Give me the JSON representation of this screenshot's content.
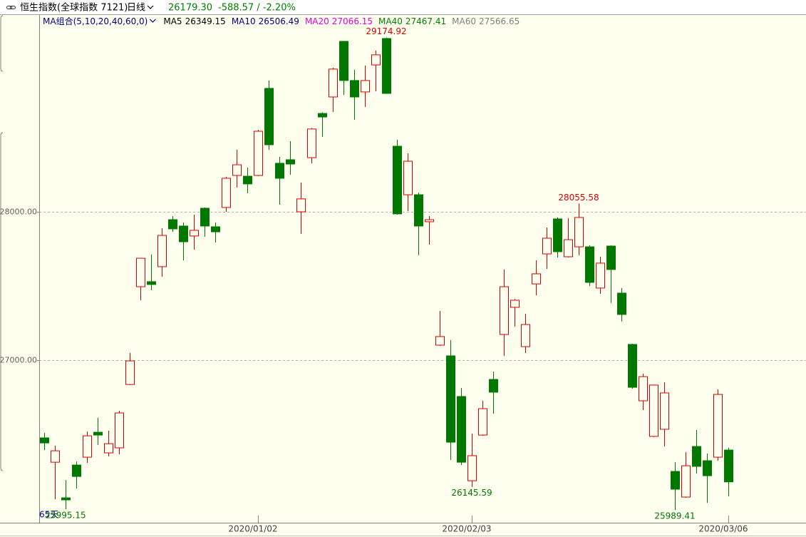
{
  "chart_data": {
    "type": "candlestick",
    "title": "恒生指数(全球指数  7121)",
    "period": "日线",
    "last_price": "26179.30",
    "change": "-588.57 / -2.20%",
    "ma_legend": {
      "label": "MA组合(5,10,20,40,60,0)",
      "items": [
        {
          "name": "MA5",
          "value": "26349.15",
          "color": "#000000"
        },
        {
          "name": "MA10",
          "value": "26506.49",
          "color": "#000080"
        },
        {
          "name": "MA20",
          "value": "27066.15",
          "color": "#e000e0"
        },
        {
          "name": "MA40",
          "value": "27467.41",
          "color": "#008000"
        },
        {
          "name": "MA60",
          "value": "27566.65",
          "color": "#808080"
        }
      ]
    },
    "range_label": "65天",
    "categories": [
      null,
      null,
      null,
      null,
      null,
      null,
      null,
      null,
      null,
      null,
      null,
      null,
      null,
      null,
      null,
      null,
      null,
      null,
      null,
      null,
      "2020/01/02",
      null,
      null,
      null,
      null,
      null,
      null,
      null,
      null,
      null,
      null,
      null,
      null,
      null,
      null,
      null,
      null,
      null,
      null,
      null,
      "2020/02/03",
      null,
      null,
      null,
      null,
      null,
      null,
      null,
      null,
      null,
      null,
      null,
      null,
      null,
      null,
      null,
      null,
      null,
      null,
      null,
      null,
      null,
      null,
      null,
      "2020/03/06"
    ],
    "open": [
      26476,
      26312,
      26072,
      26293,
      26346,
      26514,
      26375,
      26409,
      26836,
      27495,
      27529,
      27630,
      27947,
      27904,
      27837,
      28024,
      27899,
      28029,
      28245,
      28240,
      28245,
      28832,
      28327,
      28351,
      28000,
      28365,
      28663,
      28774,
      29149,
      28885,
      28808,
      28990,
      29168,
      28442,
      28115,
      28115,
      27933,
      27101,
      27029,
      26755,
      26187,
      26495,
      26870,
      27173,
      27356,
      27091,
      27514,
      27716,
      27952,
      27697,
      27764,
      27764,
      27486,
      27769,
      27452,
      27106,
      26726,
      26486,
      26534,
      26250,
      26077,
      26418,
      26322,
      26346,
      26394
    ],
    "high": [
      26510,
      26423,
      26192,
      26317,
      26519,
      26611,
      26524,
      26659,
      27048,
      27690,
      27712,
      27889,
      27971,
      27928,
      27981,
      28029,
      27928,
      28236,
      28418,
      28298,
      28553,
      28885,
      28370,
      28476,
      28197,
      28565,
      28670,
      28971,
      29150,
      28957,
      28986,
      29087,
      29174.92,
      28486,
      28394,
      28130,
      27971,
      27332,
      27135,
      26812,
      26505,
      26726,
      26923,
      27611,
      27413,
      27312,
      27673,
      27894,
      27962,
      27957,
      28055.58,
      27774,
      27697,
      27774,
      27486,
      27110,
      26909,
      26835,
      26851,
      26312,
      26380,
      26529,
      26370,
      26803,
      26409
    ],
    "low": [
      26394,
      26062,
      25995.15,
      26135,
      26308,
      26428,
      26351,
      26365,
      26832,
      27404,
      27471,
      27562,
      27865,
      27673,
      27745,
      27832,
      27793,
      28000,
      28163,
      28125,
      28240,
      28418,
      28048,
      28250,
      27851,
      28327,
      28505,
      28673,
      28788,
      28620,
      28707,
      28812,
      28795,
      27981,
      28005,
      27707,
      27779,
      27096,
      26327,
      26293,
      26145.59,
      26490,
      26639,
      27029,
      27226,
      27048,
      27437,
      27615,
      27692,
      27692,
      27707,
      27500,
      27447,
      27385,
      27260,
      26808,
      26663,
      26481,
      26418,
      25989.41,
      26072,
      26235,
      26038,
      26322,
      26082
    ],
    "close": [
      26442,
      26389,
      26058,
      26216,
      26490,
      26495,
      26437,
      26644,
      26995,
      27687,
      27510,
      27841,
      27885,
      27798,
      27875,
      27904,
      27865,
      28226,
      28317,
      28188,
      28543,
      28452,
      28226,
      28322,
      28087,
      28558,
      28639,
      28962,
      28885,
      28774,
      28885,
      29058,
      28798,
      27986,
      28341,
      27904,
      27947,
      27159,
      26447,
      26312,
      26356,
      26673,
      26784,
      27495,
      27404,
      27240,
      27582,
      27822,
      27731,
      27812,
      27962,
      27524,
      27654,
      27611,
      27308,
      26817,
      26889,
      26832,
      26779,
      26130,
      26288,
      26284,
      26221,
      26769,
      26179.3
    ],
    "up_color": "#d40000",
    "down_color": "#007800",
    "header_color": "#008000",
    "ylim": [
      25904,
      29245
    ],
    "yticks": [
      {
        "value": 28000,
        "label": "28000.00"
      },
      {
        "value": 27000,
        "label": "27000.00"
      }
    ],
    "grid": true
  }
}
